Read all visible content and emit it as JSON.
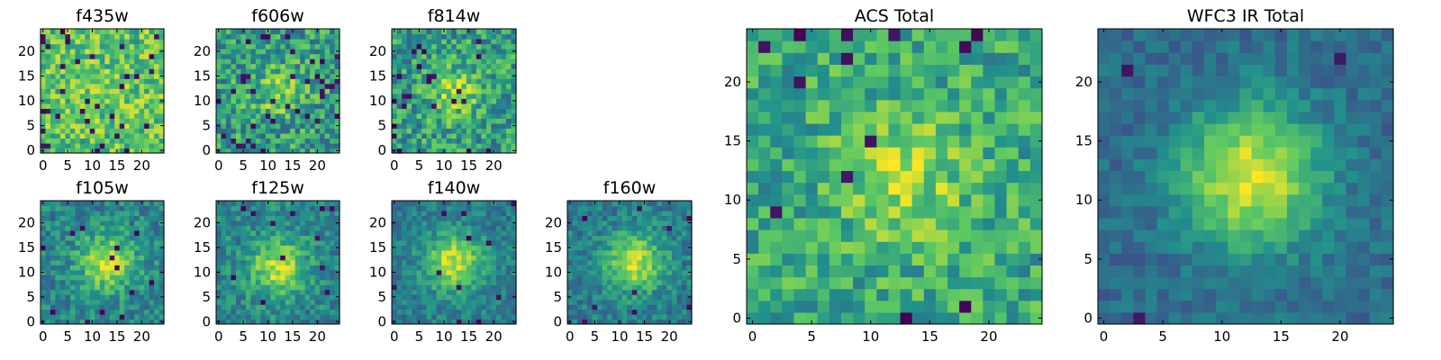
{
  "chart_data": {
    "type": "heatmap",
    "colormap": "viridis",
    "colormap_stops": [
      "#440154",
      "#3b528b",
      "#21918c",
      "#5ec962",
      "#fde725"
    ],
    "grid_size": 25,
    "panels": [
      {
        "id": "f435w",
        "title": "f435w",
        "xticks": [
          "0",
          "5",
          "10",
          "15",
          "20"
        ],
        "yticks": [
          "0",
          "5",
          "10",
          "15",
          "20"
        ],
        "xlim": [
          0,
          24
        ],
        "ylim": [
          0,
          24
        ],
        "blob_center": [
          12,
          12
        ],
        "blob_sigma": 3.5,
        "blob_amplitude": 0.05,
        "background_level": 0.72,
        "noise_level": 0.22,
        "dark_pixel_fraction": 0.05,
        "seed": 11
      },
      {
        "id": "f606w",
        "title": "f606w",
        "xticks": [
          "0",
          "5",
          "10",
          "15",
          "20"
        ],
        "yticks": [
          "0",
          "5",
          "10",
          "15",
          "20"
        ],
        "xlim": [
          0,
          24
        ],
        "ylim": [
          0,
          24
        ],
        "blob_center": [
          12,
          12
        ],
        "blob_sigma": 3.5,
        "blob_amplitude": 0.25,
        "background_level": 0.55,
        "noise_level": 0.25,
        "dark_pixel_fraction": 0.05,
        "seed": 23
      },
      {
        "id": "f814w",
        "title": "f814w",
        "xticks": [
          "0",
          "5",
          "10",
          "15",
          "20"
        ],
        "yticks": [
          "0",
          "5",
          "10",
          "15",
          "20"
        ],
        "xlim": [
          0,
          24
        ],
        "ylim": [
          0,
          24
        ],
        "blob_center": [
          12,
          12
        ],
        "blob_sigma": 3.5,
        "blob_amplitude": 0.3,
        "background_level": 0.55,
        "noise_level": 0.24,
        "dark_pixel_fraction": 0.04,
        "seed": 37
      },
      {
        "id": "f105w",
        "title": "f105w",
        "xticks": [
          "0",
          "5",
          "10",
          "15",
          "20"
        ],
        "yticks": [
          "0",
          "5",
          "10",
          "15",
          "20"
        ],
        "xlim": [
          0,
          24
        ],
        "ylim": [
          0,
          24
        ],
        "blob_center": [
          13,
          12
        ],
        "blob_sigma": 4,
        "blob_amplitude": 0.45,
        "background_level": 0.45,
        "noise_level": 0.16,
        "dark_pixel_fraction": 0.02,
        "seed": 41
      },
      {
        "id": "f125w",
        "title": "f125w",
        "xticks": [
          "0",
          "5",
          "10",
          "15",
          "20"
        ],
        "yticks": [
          "0",
          "5",
          "10",
          "15",
          "20"
        ],
        "xlim": [
          0,
          24
        ],
        "ylim": [
          0,
          24
        ],
        "blob_center": [
          12,
          11
        ],
        "blob_sigma": 4,
        "blob_amplitude": 0.45,
        "background_level": 0.45,
        "noise_level": 0.16,
        "dark_pixel_fraction": 0.02,
        "seed": 53
      },
      {
        "id": "f140w",
        "title": "f140w",
        "xticks": [
          "0",
          "5",
          "10",
          "15",
          "20"
        ],
        "yticks": [
          "0",
          "5",
          "10",
          "15",
          "20"
        ],
        "xlim": [
          0,
          24
        ],
        "ylim": [
          0,
          24
        ],
        "blob_center": [
          12,
          12
        ],
        "blob_sigma": 4,
        "blob_amplitude": 0.5,
        "background_level": 0.42,
        "noise_level": 0.13,
        "dark_pixel_fraction": 0.015,
        "seed": 67
      },
      {
        "id": "f160w",
        "title": "f160w",
        "xticks": [
          "0",
          "5",
          "10",
          "15",
          "20"
        ],
        "yticks": [
          "0",
          "5",
          "10",
          "15",
          "20"
        ],
        "xlim": [
          0,
          24
        ],
        "ylim": [
          0,
          24
        ],
        "blob_center": [
          13,
          12
        ],
        "blob_sigma": 4,
        "blob_amplitude": 0.5,
        "background_level": 0.42,
        "noise_level": 0.14,
        "dark_pixel_fraction": 0.02,
        "seed": 79
      },
      {
        "id": "acs-total",
        "title": "ACS Total",
        "xticks": [
          "0",
          "5",
          "10",
          "15",
          "20"
        ],
        "yticks": [
          "0",
          "5",
          "10",
          "15",
          "20"
        ],
        "xlim": [
          0,
          24
        ],
        "ylim": [
          0,
          24
        ],
        "blob_center": [
          13,
          12
        ],
        "blob_sigma": 4,
        "blob_amplitude": 0.25,
        "background_level": 0.6,
        "noise_level": 0.2,
        "dark_pixel_fraction": 0.03,
        "seed": 97
      },
      {
        "id": "wfc3-ir-total",
        "title": "WFC3 IR Total",
        "xticks": [
          "0",
          "5",
          "10",
          "15",
          "20"
        ],
        "yticks": [
          "0",
          "5",
          "10",
          "15",
          "20"
        ],
        "xlim": [
          0,
          24
        ],
        "ylim": [
          0,
          24
        ],
        "blob_center": [
          12.5,
          12
        ],
        "blob_sigma": 4.2,
        "blob_amplitude": 0.6,
        "background_level": 0.35,
        "noise_level": 0.1,
        "dark_pixel_fraction": 0.015,
        "seed": 103
      }
    ]
  }
}
